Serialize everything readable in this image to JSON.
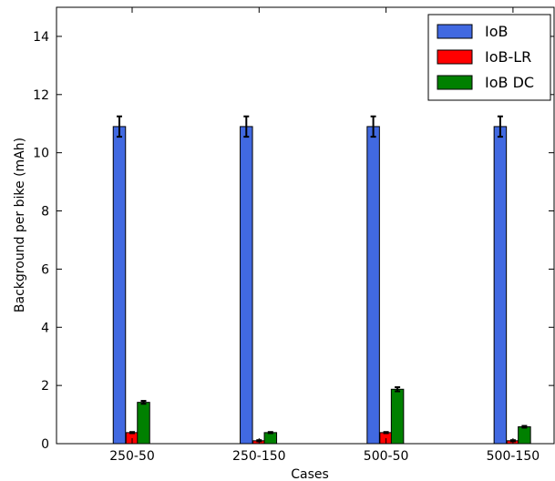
{
  "chart_data": {
    "type": "bar",
    "categories": [
      "250-50",
      "250-150",
      "500-50",
      "500-150"
    ],
    "series": [
      {
        "name": "IoB",
        "color": "#4169E1",
        "values": [
          10.9,
          10.9,
          10.9,
          10.9
        ],
        "errors": [
          0.35,
          0.35,
          0.35,
          0.35
        ]
      },
      {
        "name": "IoB-LR",
        "color": "#FF0000",
        "values": [
          0.38,
          0.1,
          0.38,
          0.1
        ],
        "errors": [
          0.02,
          0.02,
          0.02,
          0.02
        ]
      },
      {
        "name": "IoB DC",
        "color": "#008000",
        "values": [
          1.42,
          0.38,
          1.87,
          0.58
        ],
        "errors": [
          0.05,
          0.02,
          0.07,
          0.03
        ]
      }
    ],
    "xlabel": "Cases",
    "ylabel": "Background per bike (mAh)",
    "ylim": [
      0,
      15
    ],
    "yticks": [
      0,
      2,
      4,
      6,
      8,
      10,
      12,
      14
    ],
    "grid": false,
    "legend_position": "top-right"
  }
}
